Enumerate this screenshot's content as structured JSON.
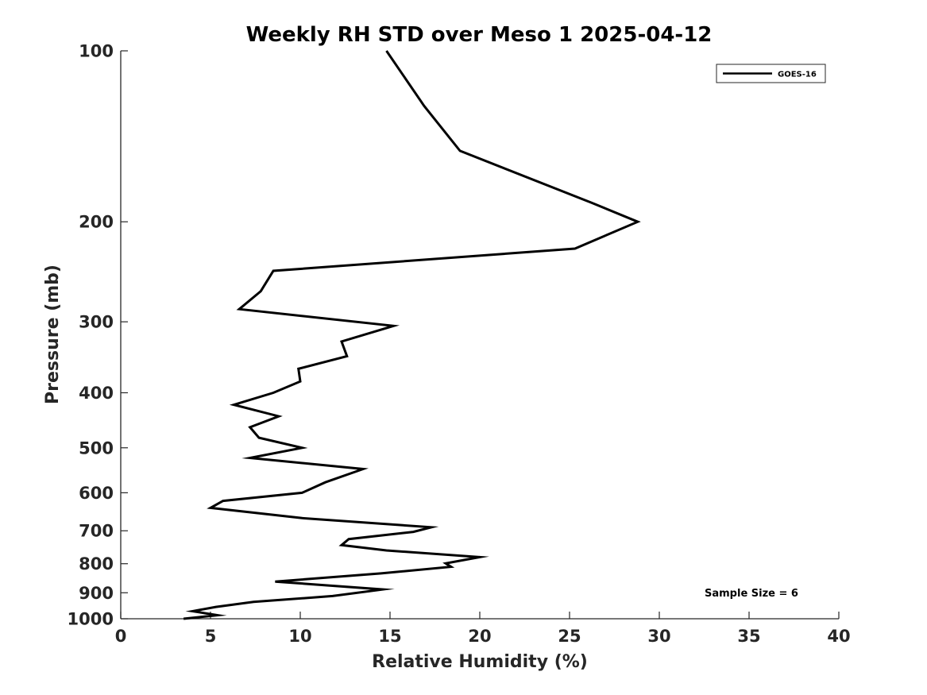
{
  "chart_data": {
    "type": "line",
    "title": "Weekly RH STD over Meso 1 2025-04-12",
    "xlabel": "Relative Humidity (%)",
    "ylabel": "Pressure (mb)",
    "xlim": [
      0,
      40
    ],
    "ylim": [
      100,
      1000
    ],
    "y_scale": "log",
    "y_reversed": true,
    "xticks": [
      0,
      5,
      10,
      15,
      20,
      25,
      30,
      35,
      40
    ],
    "yticks": [
      100,
      200,
      300,
      400,
      500,
      600,
      700,
      800,
      900,
      1000
    ],
    "grid": false,
    "legend_position": "top-right",
    "annotation": "Sample Size = 6",
    "series": [
      {
        "name": "GOES-16",
        "color": "#000000",
        "x": [
          14.8,
          16.9,
          18.9,
          26.2,
          28.8,
          25.3,
          8.5,
          7.8,
          6.6,
          15.2,
          12.3,
          12.6,
          9.9,
          10.0,
          8.5,
          6.3,
          8.8,
          7.2,
          7.7,
          10.1,
          7.2,
          13.5,
          11.4,
          10.1,
          5.7,
          5.0,
          10.1,
          17.3,
          16.3,
          12.7,
          12.3,
          14.8,
          20.0,
          18.1,
          18.4,
          14.5,
          8.6,
          14.6,
          11.8,
          7.4,
          5.3,
          4.0,
          5.4,
          3.5
        ],
        "y": [
          100,
          125,
          150,
          185,
          200,
          223,
          244,
          265,
          285,
          305,
          325,
          345,
          363,
          382,
          400,
          420,
          440,
          460,
          480,
          500,
          521,
          545,
          575,
          600,
          620,
          638,
          665,
          690,
          703,
          724,
          742,
          758,
          779,
          799,
          810,
          832,
          860,
          888,
          912,
          934,
          953,
          970,
          986,
          1000
        ]
      }
    ]
  }
}
